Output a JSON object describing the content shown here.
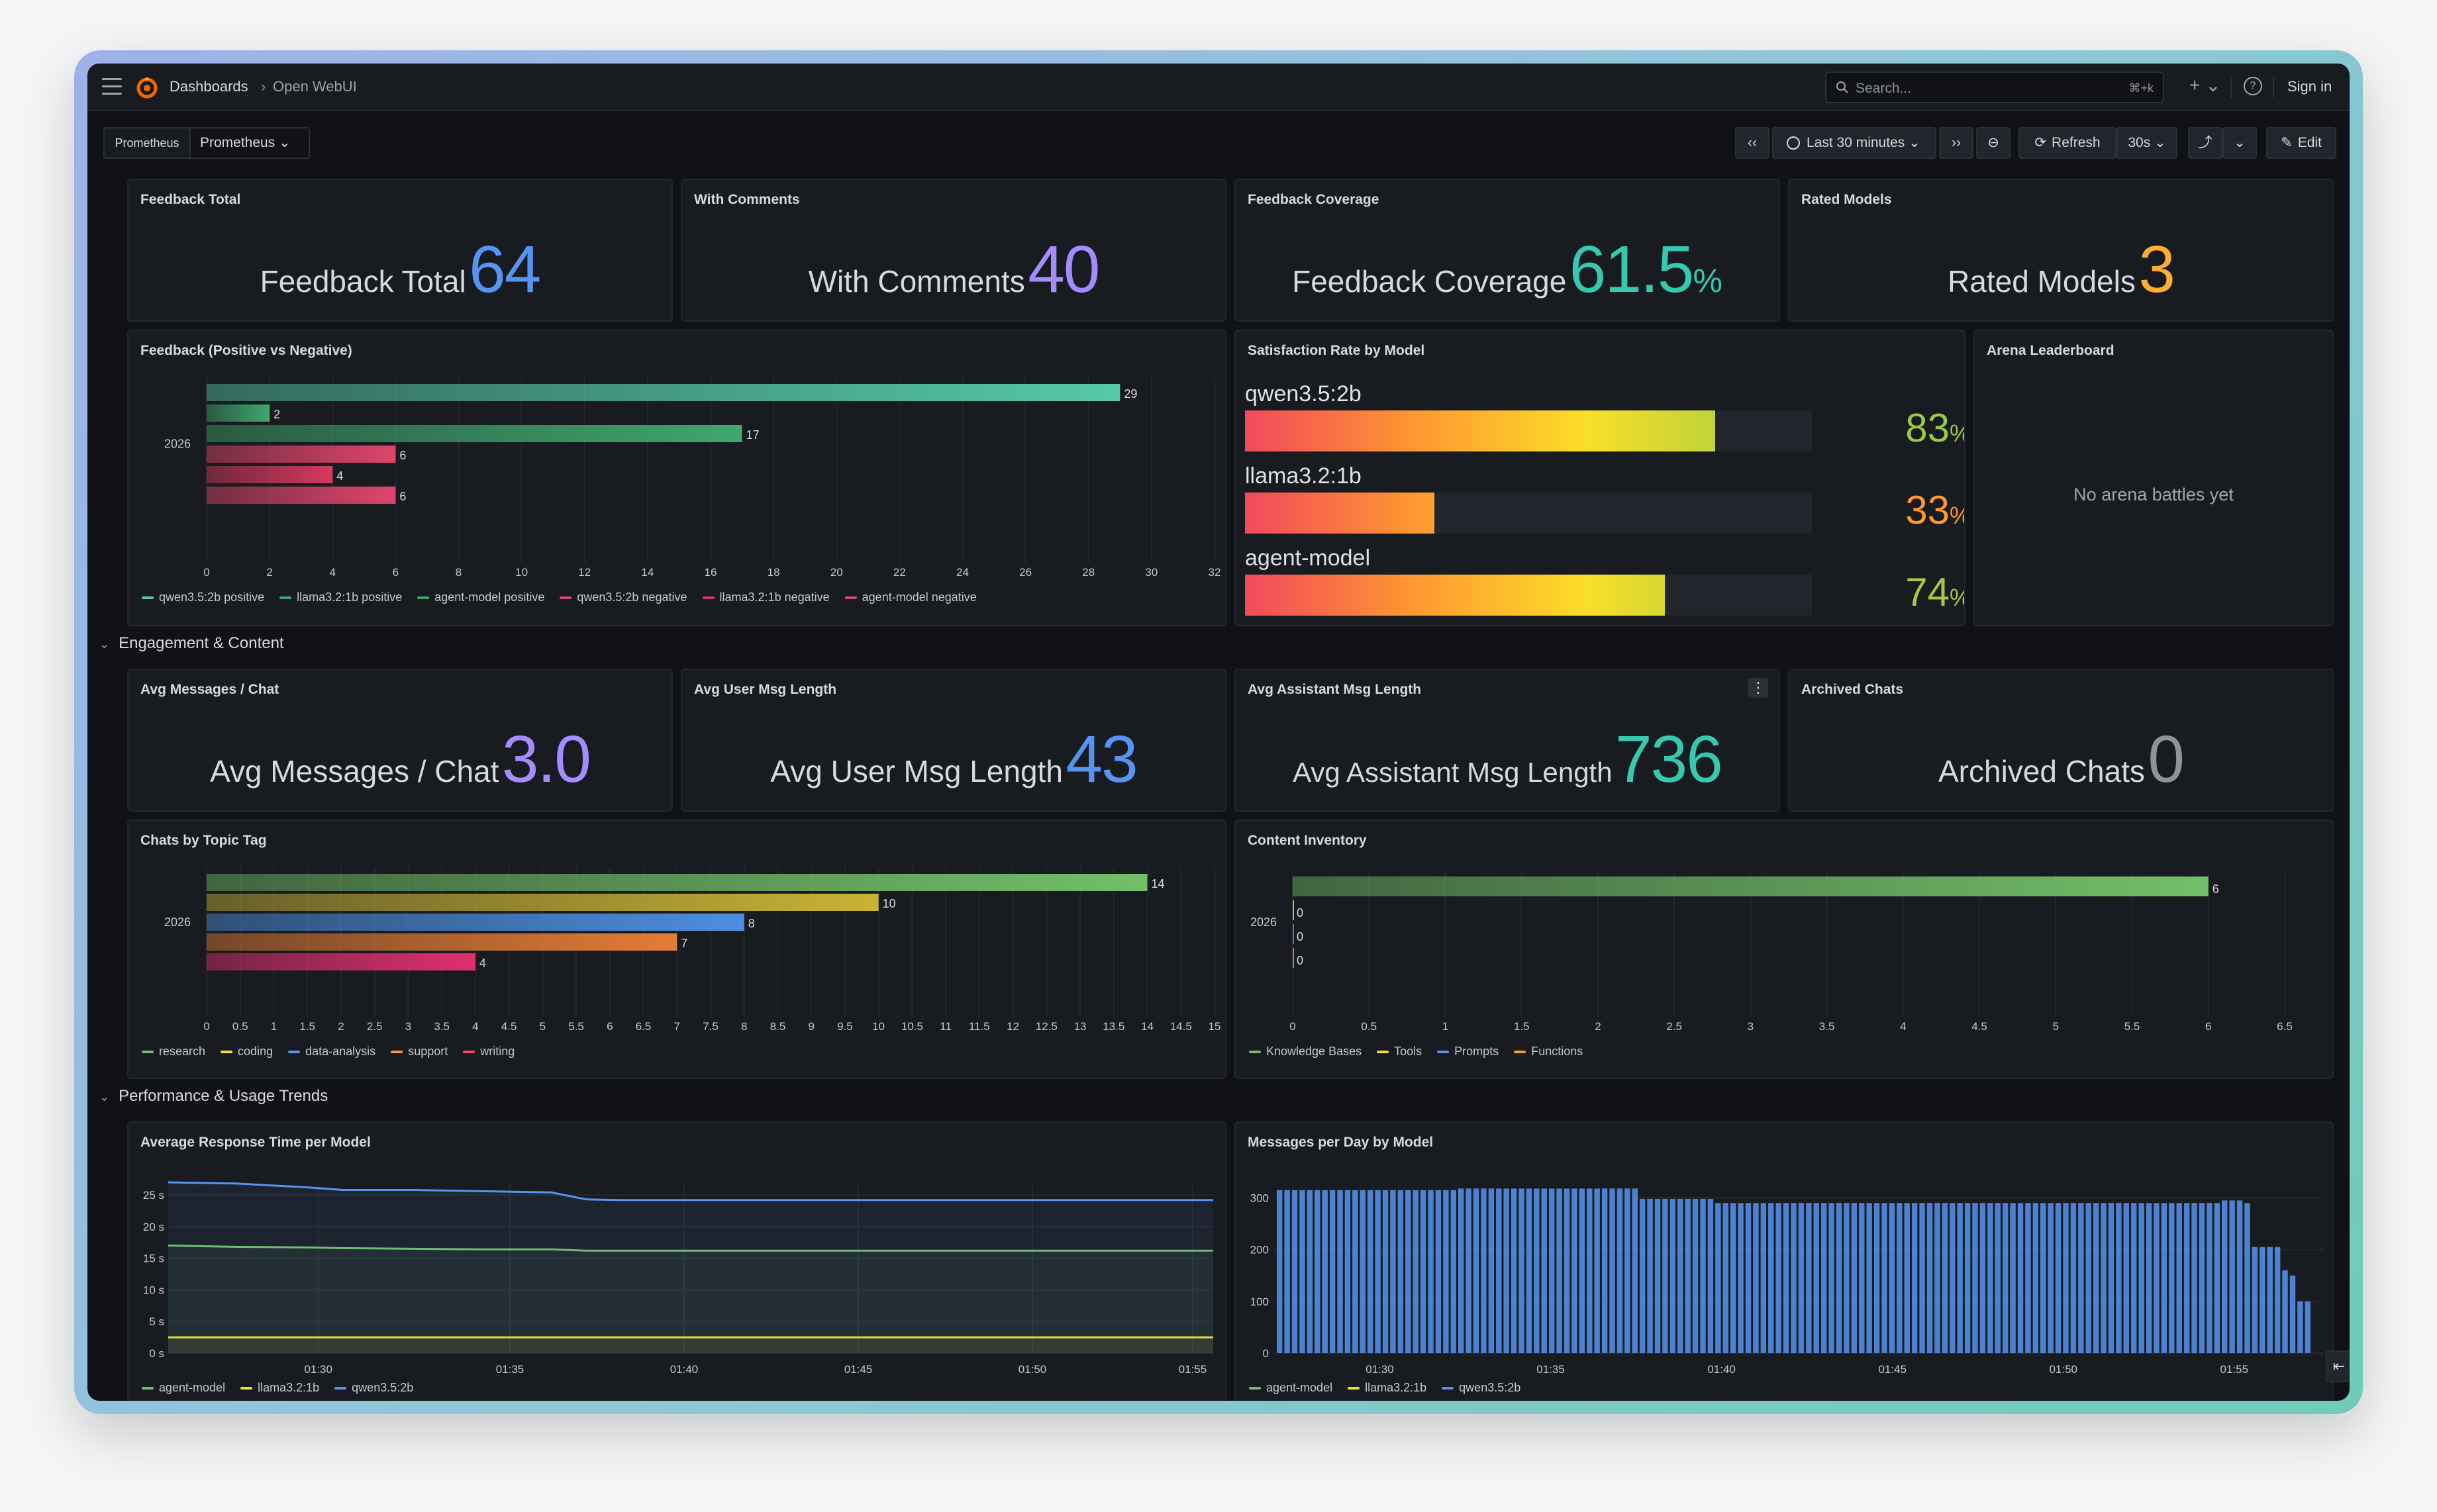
{
  "topbar": {
    "breadcrumb_root": "Dashboards",
    "breadcrumb_sep": "›",
    "breadcrumb_current": "Open WebUI",
    "search_placeholder": "Search...",
    "search_shortcut": "⌘+k",
    "plus_label": "+ ⌄",
    "help_label": "?",
    "sign_in": "Sign in"
  },
  "variables": {
    "datasource_label": "Prometheus",
    "datasource_value": "Prometheus ⌄"
  },
  "controls": {
    "time_back": "‹‹",
    "time_range": "Last 30 minutes ⌄",
    "time_forward": "››",
    "zoom_out": "⊖",
    "refresh": "Refresh",
    "refresh_interval": "30s ⌄",
    "share": "⤴",
    "share_menu": "⌄",
    "edit": "Edit"
  },
  "stats_row1": [
    {
      "title": "Feedback Total",
      "label": "Feedback Total",
      "value": "64",
      "unit": "",
      "color": "#5794f2"
    },
    {
      "title": "With Comments",
      "label": "With Comments",
      "value": "40",
      "unit": "",
      "color": "#a68bff"
    },
    {
      "title": "Feedback Coverage",
      "label": "Feedback Coverage",
      "value": "61.5",
      "unit": "%",
      "color": "#37c8b0"
    },
    {
      "title": "Rated Models",
      "label": "Rated Models",
      "value": "3",
      "unit": "",
      "color": "#fbad37"
    }
  ],
  "feedback_chart": {
    "title": "Feedback (Positive vs Negative)",
    "chart_data": {
      "type": "bar",
      "orientation": "horizontal",
      "categories": [
        "2026"
      ],
      "series": [
        {
          "name": "qwen3.5:2b positive",
          "values": [
            29
          ],
          "color": "#56c9a8"
        },
        {
          "name": "llama3.2:1b positive",
          "values": [
            2
          ],
          "color": "#3fa76e"
        },
        {
          "name": "agent-model positive",
          "values": [
            17
          ],
          "color": "#3fa76e"
        },
        {
          "name": "qwen3.5:2b negative",
          "values": [
            6
          ],
          "color": "#e0456b"
        },
        {
          "name": "llama3.2:1b negative",
          "values": [
            4
          ],
          "color": "#d6395e"
        },
        {
          "name": "agent-model negative",
          "values": [
            6
          ],
          "color": "#e0456b"
        }
      ],
      "xlim": [
        0,
        32
      ],
      "xticks": [
        "0",
        "2",
        "4",
        "6",
        "8",
        "10",
        "12",
        "14",
        "16",
        "18",
        "20",
        "22",
        "24",
        "26",
        "28",
        "30",
        "32"
      ],
      "legend": "bottom"
    }
  },
  "satisfaction": {
    "title": "Satisfaction Rate by Model",
    "items": [
      {
        "name": "qwen3.5:2b",
        "value": "83",
        "unit": "%",
        "fraction": 0.83,
        "color": "#96cb45"
      },
      {
        "name": "llama3.2:1b",
        "value": "33",
        "unit": "%",
        "fraction": 0.33,
        "color": "#ff9830"
      },
      {
        "name": "agent-model",
        "value": "74",
        "unit": "%",
        "fraction": 0.74,
        "color": "#a6cb3e"
      }
    ]
  },
  "arena": {
    "title": "Arena Leaderboard",
    "empty": "No arena battles yet"
  },
  "row_engagement": {
    "label": "Engagement & Content",
    "chevron": "⌄"
  },
  "stats_row2": [
    {
      "title": "Avg Messages / Chat",
      "label": "Avg Messages / Chat",
      "value": "3.0",
      "unit": "",
      "color": "#a68bff"
    },
    {
      "title": "Avg User Msg Length",
      "label": "Avg User Msg Length",
      "value": "43",
      "unit": "",
      "color": "#5794f2"
    },
    {
      "title": "Avg Assistant Msg Length",
      "label": "Avg Assistant Msg Length",
      "value": "736",
      "unit": "",
      "color": "#37c8b0"
    },
    {
      "title": "Archived Chats",
      "label": "Archived Chats",
      "value": "0",
      "unit": "",
      "color": "#8e929b"
    }
  ],
  "panel_menu": "⋮",
  "topics_chart": {
    "title": "Chats by Topic Tag",
    "chart_data": {
      "type": "bar",
      "orientation": "horizontal",
      "categories": [
        "2026"
      ],
      "series": [
        {
          "name": "research",
          "values": [
            14
          ],
          "color": "#73bf69"
        },
        {
          "name": "coding",
          "values": [
            10
          ],
          "color": "#c9b336"
        },
        {
          "name": "data-analysis",
          "values": [
            8
          ],
          "color": "#4d8fe0"
        },
        {
          "name": "support",
          "values": [
            7
          ],
          "color": "#e57c36"
        },
        {
          "name": "writing",
          "values": [
            4
          ],
          "color": "#e0306e"
        }
      ],
      "xlim": [
        0,
        15
      ],
      "xticks": [
        "0",
        "0.5",
        "1",
        "1.5",
        "2",
        "2.5",
        "3",
        "3.5",
        "4",
        "4.5",
        "5",
        "5.5",
        "6",
        "6.5",
        "7",
        "7.5",
        "8",
        "8.5",
        "9",
        "9.5",
        "10",
        "10.5",
        "11",
        "11.5",
        "12",
        "12.5",
        "13",
        "13.5",
        "14",
        "14.5",
        "15"
      ],
      "legend": "bottom"
    }
  },
  "content_chart": {
    "title": "Content Inventory",
    "chart_data": {
      "type": "bar",
      "orientation": "horizontal",
      "categories": [
        "2026"
      ],
      "series": [
        {
          "name": "Knowledge Bases",
          "values": [
            6
          ],
          "color": "#73bf69"
        },
        {
          "name": "Tools",
          "values": [
            0
          ],
          "color": "#fade2a"
        },
        {
          "name": "Prompts",
          "values": [
            0
          ],
          "color": "#5794f2"
        },
        {
          "name": "Functions",
          "values": [
            0
          ],
          "color": "#ff9830"
        }
      ],
      "xlim": [
        0,
        6.5
      ],
      "xticks": [
        "0",
        "0.5",
        "1",
        "1.5",
        "2",
        "2.5",
        "3",
        "3.5",
        "4",
        "4.5",
        "5",
        "5.5",
        "6",
        "6.5"
      ],
      "legend": "bottom"
    }
  },
  "row_performance": {
    "label": "Performance & Usage Trends",
    "chevron": "⌄"
  },
  "response_chart": {
    "title": "Average Response Time per Model",
    "chart_data": {
      "type": "line",
      "xticks": [
        "01:30",
        "01:35",
        "01:40",
        "01:45",
        "01:50",
        "01:55"
      ],
      "yticks": [
        "0 s",
        "5 s",
        "10 s",
        "15 s",
        "20 s",
        "25 s"
      ],
      "ylim": [
        0,
        27
      ],
      "x_minutes": [
        0,
        2,
        4,
        5,
        7,
        9,
        11,
        12,
        13,
        30
      ],
      "series": [
        {
          "name": "agent-model",
          "color": "#73bf69",
          "values": [
            17.0,
            16.8,
            16.7,
            16.6,
            16.5,
            16.4,
            16.4,
            16.2,
            16.2,
            16.2
          ]
        },
        {
          "name": "llama3.2:1b",
          "color": "#fade2a",
          "values": [
            2.5,
            2.5,
            2.5,
            2.5,
            2.5,
            2.5,
            2.5,
            2.5,
            2.5,
            2.5
          ]
        },
        {
          "name": "qwen3.5:2b",
          "color": "#5794f2",
          "values": [
            27.0,
            26.8,
            26.2,
            25.8,
            25.8,
            25.6,
            25.4,
            24.3,
            24.2,
            24.2
          ]
        }
      ],
      "legend": "bottom"
    }
  },
  "messages_chart": {
    "title": "Messages per Day by Model",
    "chart_data": {
      "type": "bar",
      "stacked": true,
      "xticks": [
        "01:30",
        "01:35",
        "01:40",
        "01:45",
        "01:50",
        "01:55"
      ],
      "yticks": [
        "0",
        "100",
        "200",
        "300"
      ],
      "ylim": [
        0,
        330
      ],
      "values": [
        315,
        315,
        315,
        315,
        315,
        315,
        315,
        315,
        315,
        315,
        315,
        315,
        315,
        315,
        315,
        315,
        315,
        315,
        315,
        315,
        315,
        315,
        315,
        315,
        318,
        318,
        318,
        318,
        318,
        318,
        318,
        318,
        318,
        318,
        318,
        318,
        318,
        318,
        318,
        318,
        318,
        318,
        318,
        318,
        318,
        318,
        318,
        318,
        298,
        298,
        298,
        298,
        298,
        298,
        298,
        298,
        298,
        298,
        290,
        290,
        290,
        290,
        290,
        290,
        290,
        290,
        290,
        290,
        290,
        290,
        290,
        290,
        290,
        290,
        290,
        290,
        290,
        290,
        290,
        290,
        290,
        290,
        290,
        290,
        290,
        290,
        290,
        290,
        290,
        290,
        290,
        290,
        290,
        290,
        290,
        290,
        290,
        290,
        290,
        290,
        290,
        290,
        290,
        290,
        290,
        290,
        290,
        290,
        290,
        290,
        290,
        290,
        290,
        290,
        290,
        290,
        290,
        290,
        290,
        290,
        290,
        290,
        290,
        290,
        290,
        295,
        295,
        295,
        290,
        205,
        205,
        205,
        205,
        160,
        150,
        100,
        100
      ],
      "series": [
        {
          "name": "agent-model",
          "color": "#73bf69"
        },
        {
          "name": "llama3.2:1b",
          "color": "#fade2a"
        },
        {
          "name": "qwen3.5:2b",
          "color": "#5794f2"
        }
      ],
      "legend": "bottom"
    }
  },
  "dock_toggle": "⇤"
}
